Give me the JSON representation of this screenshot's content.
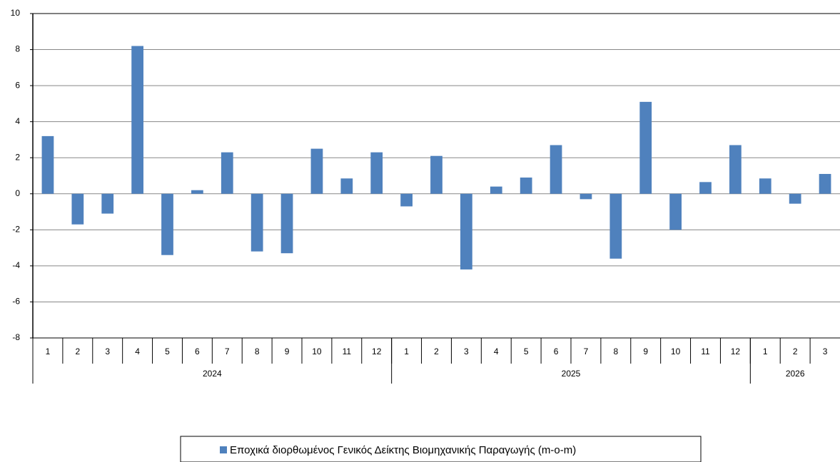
{
  "chart_data": {
    "type": "bar",
    "groups": [
      {
        "label": "2024",
        "categories": [
          "1",
          "2",
          "3",
          "4",
          "5",
          "6",
          "7",
          "8",
          "9",
          "10",
          "11",
          "12"
        ]
      },
      {
        "label": "2025",
        "categories": [
          "1",
          "2",
          "3",
          "4",
          "5",
          "6",
          "7",
          "8",
          "9",
          "10",
          "11",
          "12"
        ]
      },
      {
        "label": "2026",
        "categories": [
          "1",
          "2",
          "3"
        ]
      }
    ],
    "series": [
      {
        "name": "Εποχικά διορθωμένος Γενικός Δείκτης Βιομηχανικής Παραγωγής (m-o-m)",
        "color": "#4f81bd",
        "values": [
          3.2,
          -1.7,
          -1.1,
          8.2,
          -3.4,
          0.2,
          2.3,
          -3.2,
          -3.3,
          2.5,
          0.85,
          2.3,
          -0.7,
          2.1,
          -4.2,
          0.4,
          0.9,
          2.7,
          -0.3,
          -3.6,
          5.1,
          -2.0,
          0.65,
          2.7,
          0.85,
          -0.55,
          1.1
        ]
      }
    ],
    "ylim": [
      -8,
      10
    ],
    "yticks": [
      -8,
      -6,
      -4,
      -2,
      0,
      2,
      4,
      6,
      8,
      10
    ],
    "grid": true,
    "legend": "bottom"
  }
}
